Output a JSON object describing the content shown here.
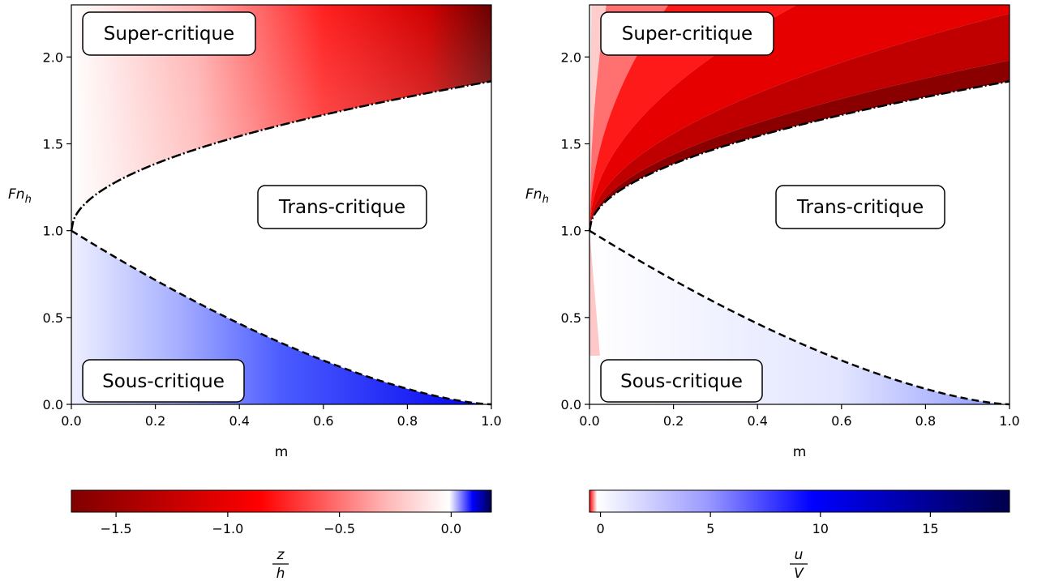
{
  "chart_data": [
    {
      "type": "heatmap",
      "panel": "left",
      "xlabel": "m",
      "ylabel_main": "Fn",
      "ylabel_sub": "h",
      "xlim": [
        0,
        1
      ],
      "ylim": [
        0,
        2.3
      ],
      "xticks": [
        "0.0",
        "0.2",
        "0.4",
        "0.6",
        "0.8",
        "1.0"
      ],
      "yticks": [
        "0.0",
        "0.5",
        "1.0",
        "1.5",
        "2.0"
      ],
      "regions": {
        "super": "Super-critique",
        "trans": "Trans-critique",
        "sous": "Sous-critique"
      },
      "critical_curves": {
        "upper_Fn": "Fn = 1 + 0.86·sqrt(m)",
        "lower_Fn": "Fn = (1 - m)^1.5",
        "upper_style": "dash-dot",
        "lower_style": "dashed"
      },
      "fill": "smooth",
      "colorbar": {
        "ticks": [
          "−1.5",
          "−1.0",
          "−0.5",
          "0.0"
        ],
        "tick_values": [
          -1.5,
          -1.0,
          -0.5,
          0.0
        ],
        "range": [
          -1.7,
          0.18
        ],
        "colormap": "seismic_r",
        "label_num": "z",
        "label_den": "h"
      }
    },
    {
      "type": "heatmap",
      "panel": "right",
      "xlabel": "m",
      "ylabel_main": "Fn",
      "ylabel_sub": "h",
      "xlim": [
        0,
        1
      ],
      "ylim": [
        0,
        2.3
      ],
      "xticks": [
        "0.0",
        "0.2",
        "0.4",
        "0.6",
        "0.8",
        "1.0"
      ],
      "yticks": [
        "0.0",
        "0.5",
        "1.0",
        "1.5",
        "2.0"
      ],
      "regions": {
        "super": "Super-critique",
        "trans": "Trans-critique",
        "sous": "Sous-critique"
      },
      "critical_curves": {
        "upper_Fn": "Fn = 1 + 0.86·sqrt(m)",
        "lower_Fn": "Fn = (1 - m)^1.5",
        "upper_style": "dash-dot",
        "lower_style": "dashed"
      },
      "fill": "banded",
      "colorbar": {
        "ticks": [
          "0",
          "5",
          "10",
          "15"
        ],
        "tick_values": [
          0,
          5,
          10,
          15
        ],
        "range": [
          -0.5,
          18.6
        ],
        "colormap": "seismic_r",
        "label_num": "u",
        "label_den": "V"
      }
    }
  ],
  "colors": {
    "frame": "#000000",
    "red": "#ff0000",
    "dark_red": "#800000",
    "blue": "#0000ff",
    "dark_blue": "#00004c"
  }
}
